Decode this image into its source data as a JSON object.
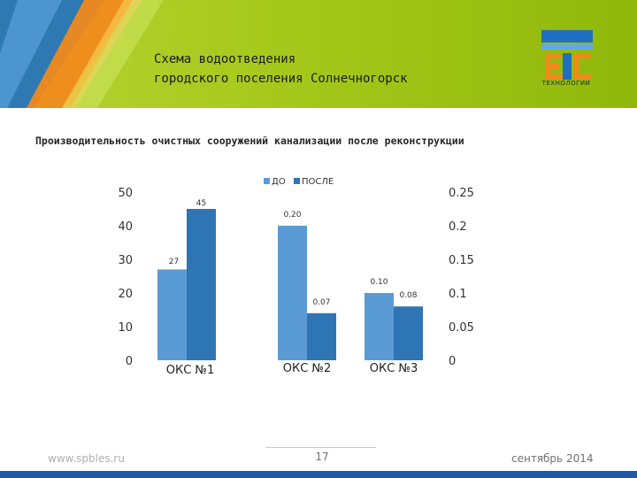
{
  "header": {
    "title": "Схема водоотведения\nгородского поселения Солнечногорск",
    "logo_text": "ТЕХНОЛОГИИ",
    "colors": {
      "header_green": "#a6c81a",
      "decor_blue": "#1f6fc0",
      "decor_orange": "#f08a1c"
    }
  },
  "subtitle": "Производительность очистных сооружений канализации после реконструкции",
  "chart_data": {
    "type": "bar",
    "categories": [
      "ОКС №1",
      "ОКС №2",
      "ОКС №3"
    ],
    "legend": [
      "ДО",
      "ПОСЛЕ"
    ],
    "legend_position": "top",
    "colors": [
      "#5b9bd5",
      "#2e75b6"
    ],
    "left_axis": {
      "ticks": [
        "0",
        "10",
        "20",
        "30",
        "40",
        "50"
      ],
      "range": [
        0,
        50
      ]
    },
    "right_axis": {
      "ticks": [
        "0",
        "0.05",
        "0.1",
        "0.15",
        "0.2",
        "0.25"
      ],
      "range": [
        0,
        0.25
      ]
    },
    "groups": [
      {
        "category": "ОКС №1",
        "axis": "left",
        "values": [
          27,
          45
        ],
        "labels": [
          "27",
          "45"
        ]
      },
      {
        "category": "ОКС №2",
        "axis": "right",
        "values": [
          0.2,
          0.07
        ],
        "labels": [
          "0.20",
          "0.07"
        ]
      },
      {
        "category": "ОКС №3",
        "axis": "right",
        "values": [
          0.1,
          0.08
        ],
        "labels": [
          "0.10",
          "0.08"
        ]
      }
    ],
    "grid": false
  },
  "footer": {
    "website": "www.spbles.ru",
    "page": "17",
    "date": "сентябрь 2014"
  }
}
